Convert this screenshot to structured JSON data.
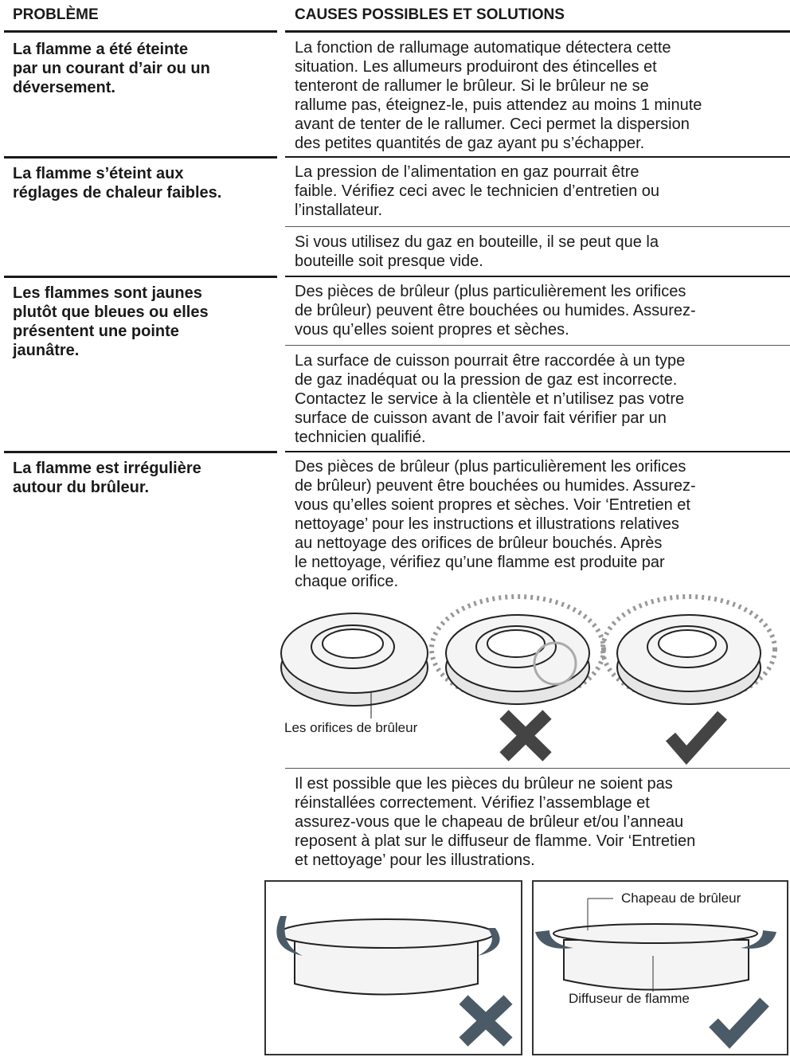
{
  "header": {
    "problem": "PROBLÈME",
    "causes": "CAUSES POSSIBLES ET SOLUTIONS"
  },
  "rows": [
    {
      "problem": [
        "La flamme a été éteinte",
        "par un courant d’air ou un",
        "déversement."
      ],
      "solutions": [
        [
          "La fonction de rallumage automatique détectera cette",
          "situation. Les allumeurs produiront des étincelles et",
          "tenteront de rallumer le brûleur. Si le brûleur ne se",
          "rallume pas, éteignez-le, puis attendez au moins 1 minute",
          "avant de tenter de le rallumer. Ceci permet la dispersion",
          "des petites quantités de gaz ayant pu s’échapper."
        ]
      ]
    },
    {
      "problem": [
        "La flamme s’éteint aux",
        "réglages de chaleur faibles."
      ],
      "solutions": [
        [
          "La pression de l’alimentation en gaz pourrait être",
          "faible. Vérifiez ceci avec le technicien d’entretien ou",
          "l’installateur."
        ],
        [
          "Si vous utilisez du gaz en bouteille, il se peut que la",
          "bouteille soit presque vide."
        ]
      ]
    },
    {
      "problem": [
        "Les flammes sont jaunes",
        "plutôt que bleues ou elles",
        "présentent une pointe",
        "jaunâtre."
      ],
      "solutions": [
        [
          "Des pièces de brûleur (plus particulièrement les orifices",
          "de brûleur) peuvent être bouchées ou humides. Assurez-",
          "vous qu’elles soient propres et sèches."
        ],
        [
          "La surface de cuisson pourrait être raccordée à un type",
          "de gaz inadéquat ou la pression de gaz est incorrecte.",
          "Contactez le service à la clientèle et n’utilisez pas votre",
          "surface de cuisson avant de l’avoir fait vérifier par un",
          "technicien qualifié."
        ]
      ]
    },
    {
      "problem": [
        "La flamme est irrégulière",
        "autour du brûleur."
      ],
      "solutions": [
        [
          "Des pièces de brûleur (plus particulièrement les orifices",
          "de brûleur) peuvent être bouchées ou humides. Assurez-",
          "vous qu’elles soient propres et sèches. Voir ‘Entretien et",
          "nettoyage’ pour les instructions et illustrations relatives",
          "au nettoyage des orifices de brûleur bouchés. Après",
          "le nettoyage, vérifiez qu’une flamme est produite par",
          "chaque orifice."
        ],
        [
          "Il est possible que les pièces du brûleur ne soient pas",
          "réinstallées correctement. Vérifiez l’assemblage et",
          "assurez-vous que le chapeau de brûleur et/ou l’anneau",
          "reposent à plat sur le diffuseur de flamme. Voir ‘Entretien",
          "et nettoyage’ pour les illustrations."
        ]
      ]
    }
  ],
  "figures": {
    "orifices_label": "Les orifices de brûleur",
    "cap_label": "Chapeau de brûleur",
    "diffuser_label": "Diffuseur de flamme"
  }
}
